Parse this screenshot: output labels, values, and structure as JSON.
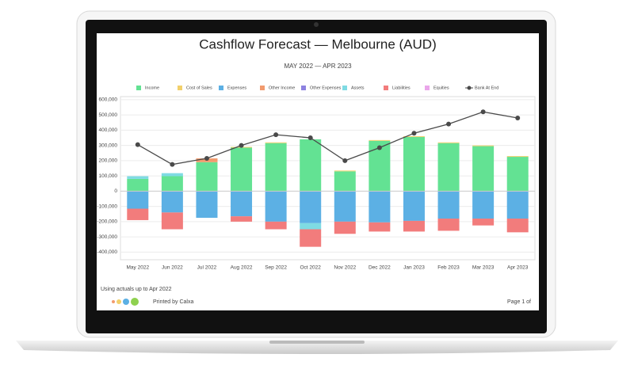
{
  "chart_data": {
    "type": "bar",
    "stacked": true,
    "title": "Cashflow Forecast — Melbourne (AUD)",
    "subtitle": "MAY 2022 — APR 2023",
    "categories": [
      "May 2022",
      "Jun 2022",
      "Jul 2022",
      "Aug 2022",
      "Sep 2022",
      "Oct 2022",
      "Nov 2022",
      "Dec 2022",
      "Jan 2023",
      "Feb 2023",
      "Mar 2023",
      "Apr 2023"
    ],
    "series": [
      {
        "name": "Income",
        "color": "#63e293",
        "values": [
          80000,
          98000,
          190000,
          285000,
          315000,
          340000,
          130000,
          330000,
          355000,
          315000,
          295000,
          225000
        ]
      },
      {
        "name": "Cost of Sales",
        "color": "#f2d06b",
        "values": [
          0,
          0,
          0,
          5000,
          5000,
          0,
          5000,
          5000,
          5000,
          5000,
          5000,
          5000
        ]
      },
      {
        "name": "Expenses",
        "color": "#5cb0e4",
        "values": [
          -115000,
          -140000,
          -175000,
          -165000,
          -200000,
          -210000,
          -200000,
          -205000,
          -195000,
          -180000,
          -180000,
          -180000
        ]
      },
      {
        "name": "Other Income",
        "color": "#f29b6e",
        "values": [
          0,
          0,
          25000,
          0,
          0,
          0,
          0,
          0,
          0,
          0,
          0,
          0
        ]
      },
      {
        "name": "Other Expenses",
        "color": "#8d82e0",
        "values": [
          0,
          0,
          0,
          0,
          0,
          0,
          0,
          0,
          0,
          0,
          0,
          0
        ]
      },
      {
        "name": "Assets",
        "color": "#7fdbe3",
        "values": [
          18000,
          20000,
          0,
          0,
          0,
          -40000,
          0,
          0,
          0,
          0,
          0,
          0
        ]
      },
      {
        "name": "Liabilities",
        "color": "#f27c7c",
        "values": [
          -75000,
          -110000,
          0,
          -35000,
          -50000,
          -115000,
          -80000,
          -60000,
          -70000,
          -80000,
          -45000,
          -90000
        ]
      },
      {
        "name": "Equities",
        "color": "#eaa6ea",
        "values": [
          0,
          0,
          0,
          0,
          0,
          0,
          0,
          0,
          0,
          0,
          0,
          0
        ]
      },
      {
        "name": "Bank At End",
        "color": "#4a4a4a",
        "type": "line",
        "values": [
          305000,
          175000,
          215000,
          300000,
          370000,
          350000,
          200000,
          285000,
          380000,
          440000,
          520000,
          480000
        ]
      }
    ],
    "ylim": [
      -450000,
      620000
    ],
    "yticks": [
      {
        "value": -400000,
        "label": "-400,000"
      },
      {
        "value": -300000,
        "label": "-300,000"
      },
      {
        "value": -200000,
        "label": "-200,000"
      },
      {
        "value": -100000,
        "label": "-100,000"
      },
      0,
      {
        "value": 100000,
        "label": "100,000"
      },
      {
        "value": 200000,
        "label": "200,000"
      },
      {
        "value": 300000,
        "label": "300,000"
      },
      {
        "value": 400000,
        "label": "400,000"
      },
      {
        "value": 500000,
        "label": "500,000"
      },
      {
        "value": 600000,
        "label": "600,000"
      }
    ],
    "grid": true
  },
  "footer": {
    "note": "Using actuals up to Apr 2022",
    "printed": "Printed by Calxa",
    "page": "Page 1 of"
  }
}
